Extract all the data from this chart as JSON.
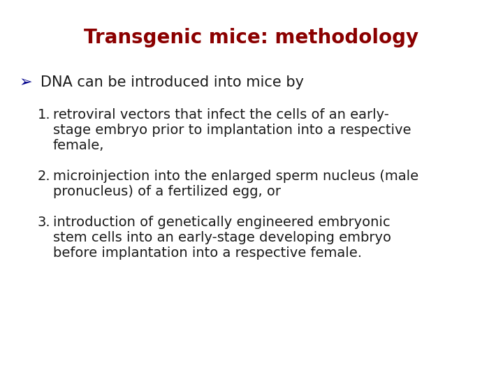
{
  "title": "Transgenic mice: methodology",
  "title_color": "#8B0000",
  "title_fontsize": 20,
  "title_fontweight": "bold",
  "background_color": "#FFFFFF",
  "bullet_symbol": "➢",
  "bullet_symbol_color": "#00008B",
  "bullet_text": "DNA can be introduced into mice by",
  "bullet_fontsize": 15,
  "items": [
    {
      "number": "1.",
      "lines": [
        "retroviral vectors that infect the cells of an early-",
        "stage embryo prior to implantation into a respective",
        "female,"
      ]
    },
    {
      "number": "2.",
      "lines": [
        "microinjection into the enlarged sperm nucleus (male",
        "pronucleus) of a fertilized egg, or"
      ]
    },
    {
      "number": "3.",
      "lines": [
        "introduction of genetically engineered embryonic",
        "stem cells into an early-stage developing embryo",
        "before implantation into a respective female."
      ]
    }
  ],
  "item_fontsize": 14,
  "item_color": "#1a1a1a",
  "number_color": "#1a1a1a",
  "fig_width": 7.2,
  "fig_height": 5.4,
  "dpi": 100
}
